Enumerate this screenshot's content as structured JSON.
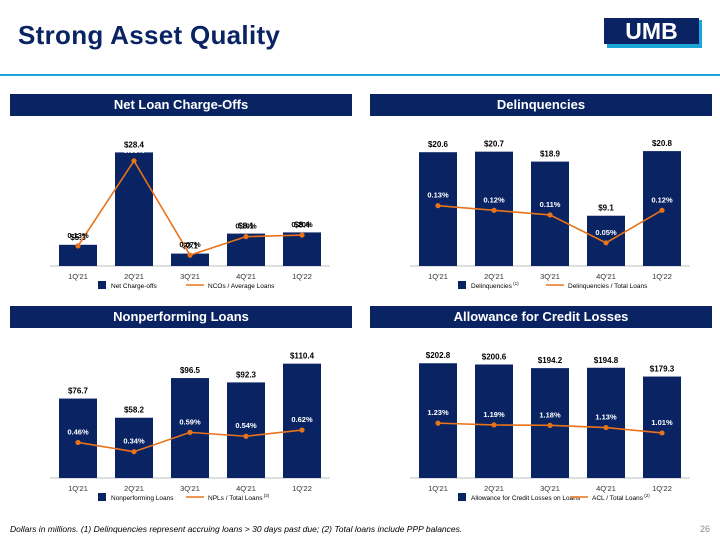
{
  "page": {
    "title": "Strong Asset Quality",
    "logo_text": "UMB",
    "footnote": "Dollars in millions. (1) Delinquencies represent accruing loans > 30 days past due; (2) Total loans include PPP balances.",
    "page_number": "26"
  },
  "colors": {
    "bar": "#0a2463",
    "line": "#e8731a",
    "accent": "#1aa6d9",
    "header_bg": "#0a2463"
  },
  "chart_data": [
    {
      "type": "bar",
      "title": "Net Loan Charge-Offs",
      "categories": [
        "1Q'21",
        "2Q'21",
        "3Q'21",
        "4Q'21",
        "1Q'22"
      ],
      "series": [
        {
          "name": "Net Charge-offs",
          "kind": "bar",
          "values": [
            5.3,
            28.4,
            3.1,
            8.1,
            8.4
          ],
          "labels": [
            "$5.3",
            "$28.4",
            "$3.1",
            "$8.1",
            "$8.4"
          ]
        },
        {
          "name": "NCOs / Average Loans",
          "kind": "line",
          "values": [
            0.13,
            0.68,
            0.07,
            0.19,
            0.2
          ],
          "labels": [
            "0.13%",
            "0.68%",
            "0.07%",
            "0.19%",
            "0.20%"
          ]
        }
      ],
      "bar_max": 29,
      "line_max": 0.75,
      "legend": [
        {
          "label": "Net Charge-offs",
          "sup": ""
        },
        {
          "label": "NCOs / Average Loans",
          "sup": ""
        }
      ]
    },
    {
      "type": "bar",
      "title": "Delinquencies",
      "categories": [
        "1Q'21",
        "2Q'21",
        "3Q'21",
        "4Q'21",
        "1Q'22"
      ],
      "series": [
        {
          "name": "Delinquencies",
          "kind": "bar",
          "values": [
            20.6,
            20.7,
            18.9,
            9.1,
            20.8
          ],
          "labels": [
            "$20.6",
            "$20.7",
            "$18.9",
            "$9.1",
            "$20.8"
          ]
        },
        {
          "name": "Delinquencies / Total Loans",
          "kind": "line",
          "values": [
            0.13,
            0.12,
            0.11,
            0.05,
            0.12
          ],
          "labels": [
            "0.13%",
            "0.12%",
            "0.11%",
            "0.05%",
            "0.12%"
          ]
        }
      ],
      "bar_max": 21,
      "line_max": 0.25,
      "legend": [
        {
          "label": "Delinquencies",
          "sup": "(1)"
        },
        {
          "label": "Delinquencies / Total Loans",
          "sup": ""
        }
      ]
    },
    {
      "type": "bar",
      "title": "Nonperforming Loans",
      "categories": [
        "1Q'21",
        "2Q'21",
        "3Q'21",
        "4Q'21",
        "1Q'22"
      ],
      "series": [
        {
          "name": "Nonperforming Loans",
          "kind": "bar",
          "values": [
            76.7,
            58.2,
            96.5,
            92.3,
            110.4
          ],
          "labels": [
            "$76.7",
            "$58.2",
            "$96.5",
            "$92.3",
            "$110.4"
          ]
        },
        {
          "name": "NPLs / Total Loans",
          "kind": "line",
          "values": [
            0.46,
            0.34,
            0.59,
            0.54,
            0.62
          ],
          "labels": [
            "0.46%",
            "0.34%",
            "0.59%",
            "0.54%",
            "0.62%"
          ]
        }
      ],
      "bar_max": 112,
      "line_max": 1.5,
      "legend": [
        {
          "label": "Nonperforming Loans",
          "sup": ""
        },
        {
          "label": "NPLs / Total Loans",
          "sup": "(2)"
        }
      ]
    },
    {
      "type": "bar",
      "title": "Allowance for Credit Losses",
      "categories": [
        "1Q'21",
        "2Q'21",
        "3Q'21",
        "4Q'21",
        "1Q'22"
      ],
      "series": [
        {
          "name": "Allowance for Credit Losses on Loans",
          "kind": "bar",
          "values": [
            202.8,
            200.6,
            194.2,
            194.8,
            179.3
          ],
          "labels": [
            "$202.8",
            "$200.6",
            "$194.2",
            "$194.8",
            "$179.3"
          ]
        },
        {
          "name": "ACL / Total Loans",
          "kind": "line",
          "values": [
            1.23,
            1.19,
            1.18,
            1.13,
            1.01
          ],
          "labels": [
            "1.23%",
            "1.19%",
            "1.18%",
            "1.13%",
            "1.01%"
          ]
        }
      ],
      "bar_max": 205,
      "line_max": 2.6,
      "legend": [
        {
          "label": "Allowance for Credit Losses on Loans",
          "sup": ""
        },
        {
          "label": "ACL / Total Loans",
          "sup": "(2)"
        }
      ]
    }
  ]
}
